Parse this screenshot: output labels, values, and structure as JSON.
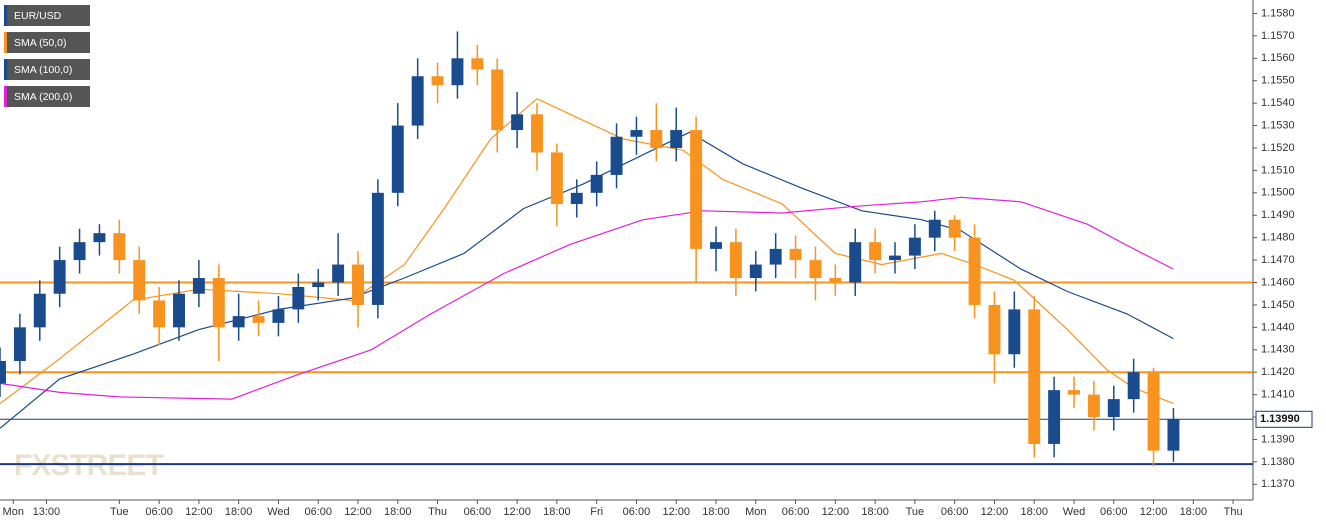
{
  "chart_data": {
    "type": "candlestick",
    "watermark": "FXSTREET",
    "candles": {
      "name": "EUR/USD",
      "color": "#1a4b8c",
      "up_color": "#1a4b8c",
      "down_color": "#f7931e",
      "x": [
        6,
        9,
        12,
        15,
        18,
        21,
        24,
        27,
        30,
        33,
        36,
        39,
        42,
        45,
        48,
        51,
        54,
        57,
        60,
        63,
        66,
        69,
        72,
        75,
        78,
        81,
        84,
        87,
        90,
        93,
        96,
        99,
        102,
        105,
        108,
        111,
        114,
        117,
        120,
        123,
        126,
        129,
        132,
        135,
        138,
        141,
        144,
        147,
        150,
        153,
        156,
        159,
        162,
        165,
        168,
        171,
        174,
        177,
        180,
        183
      ],
      "open": [
        1.1415,
        1.1425,
        1.144,
        1.1455,
        1.147,
        1.1478,
        1.1482,
        1.147,
        1.1452,
        1.144,
        1.1455,
        1.1462,
        1.144,
        1.1445,
        1.1442,
        1.1448,
        1.1458,
        1.146,
        1.1468,
        1.145,
        1.15,
        1.153,
        1.1552,
        1.1548,
        1.156,
        1.1555,
        1.1528,
        1.1535,
        1.1518,
        1.1495,
        1.15,
        1.1508,
        1.1525,
        1.1528,
        1.152,
        1.1528,
        1.1475,
        1.1478,
        1.1462,
        1.1468,
        1.1475,
        1.147,
        1.1462,
        1.146,
        1.1478,
        1.147,
        1.1472,
        1.148,
        1.1488,
        1.148,
        1.145,
        1.1428,
        1.1448,
        1.1388,
        1.1412,
        1.141,
        1.14,
        1.1408,
        1.142,
        1.1385
      ],
      "high": [
        1.1431,
        1.1446,
        1.1461,
        1.1476,
        1.1484,
        1.1486,
        1.1488,
        1.1476,
        1.1458,
        1.1461,
        1.147,
        1.1468,
        1.1455,
        1.1452,
        1.1454,
        1.1464,
        1.1466,
        1.1482,
        1.1474,
        1.1506,
        1.154,
        1.156,
        1.1558,
        1.1572,
        1.1566,
        1.156,
        1.1545,
        1.154,
        1.1522,
        1.1506,
        1.1514,
        1.1531,
        1.1534,
        1.154,
        1.1538,
        1.1534,
        1.1485,
        1.1484,
        1.1474,
        1.1482,
        1.1481,
        1.1476,
        1.1468,
        1.1484,
        1.1484,
        1.1478,
        1.1486,
        1.1492,
        1.149,
        1.1486,
        1.1456,
        1.1456,
        1.1454,
        1.1418,
        1.1418,
        1.1416,
        1.1414,
        1.1426,
        1.1422,
        1.1404
      ],
      "low": [
        1.1409,
        1.1419,
        1.1434,
        1.1449,
        1.1464,
        1.1472,
        1.1464,
        1.1446,
        1.1432,
        1.1434,
        1.1449,
        1.1425,
        1.1434,
        1.1436,
        1.1436,
        1.1442,
        1.1452,
        1.1454,
        1.144,
        1.1444,
        1.1494,
        1.1524,
        1.154,
        1.1542,
        1.1548,
        1.1518,
        1.152,
        1.151,
        1.1485,
        1.1489,
        1.1494,
        1.1502,
        1.1517,
        1.1514,
        1.1514,
        1.146,
        1.1465,
        1.1454,
        1.1456,
        1.1462,
        1.1462,
        1.1452,
        1.1454,
        1.1454,
        1.1464,
        1.1464,
        1.1466,
        1.1474,
        1.1474,
        1.1444,
        1.1415,
        1.1422,
        1.1382,
        1.1382,
        1.1404,
        1.1394,
        1.1394,
        1.1402,
        1.1378,
        1.138
      ],
      "close": [
        1.1425,
        1.144,
        1.1455,
        1.147,
        1.1478,
        1.1482,
        1.147,
        1.1452,
        1.144,
        1.1455,
        1.1462,
        1.144,
        1.1445,
        1.1442,
        1.1448,
        1.1458,
        1.146,
        1.1468,
        1.145,
        1.15,
        1.153,
        1.1552,
        1.1548,
        1.156,
        1.1555,
        1.1528,
        1.1535,
        1.1518,
        1.1495,
        1.15,
        1.1508,
        1.1525,
        1.1528,
        1.152,
        1.1528,
        1.1475,
        1.1478,
        1.1462,
        1.1468,
        1.1475,
        1.147,
        1.1462,
        1.146,
        1.1478,
        1.147,
        1.1472,
        1.148,
        1.1488,
        1.148,
        1.145,
        1.1428,
        1.1448,
        1.1388,
        1.1412,
        1.141,
        1.14,
        1.1408,
        1.142,
        1.1385,
        1.1399
      ]
    },
    "series": [
      {
        "name": "SMA (50,0)",
        "color": "#f7931e",
        "x": [
          6,
          15,
          26,
          36,
          48,
          59,
          67,
          73,
          80,
          87,
          92,
          100,
          109,
          115,
          124,
          132,
          139,
          148,
          153,
          159,
          167,
          173,
          177,
          183
        ],
        "values": [
          1.1406,
          1.1426,
          1.1452,
          1.1457,
          1.1455,
          1.1452,
          1.1468,
          1.1493,
          1.1524,
          1.1542,
          1.1535,
          1.1524,
          1.1519,
          1.1506,
          1.1495,
          1.1473,
          1.1468,
          1.1473,
          1.1468,
          1.1461,
          1.1439,
          1.1421,
          1.1413,
          1.1406
        ]
      },
      {
        "name": "SMA (100,0)",
        "color": "#1a4b8c",
        "x": [
          6,
          15,
          26,
          36,
          48,
          59,
          67,
          76,
          85,
          94,
          103,
          110,
          118,
          127,
          136,
          145,
          151,
          160,
          167,
          176,
          183
        ],
        "values": [
          1.1395,
          1.1417,
          1.1428,
          1.1439,
          1.1448,
          1.1453,
          1.1462,
          1.1473,
          1.1493,
          1.1504,
          1.1517,
          1.1527,
          1.1513,
          1.1502,
          1.1492,
          1.1488,
          1.1483,
          1.1466,
          1.1456,
          1.1446,
          1.1435
        ]
      },
      {
        "name": "SMA (200,0)",
        "color": "#e020d8",
        "x": [
          6,
          15,
          24,
          41,
          51,
          62,
          71,
          82,
          92,
          103,
          112,
          124,
          135,
          145,
          151,
          160,
          170,
          177,
          183
        ],
        "values": [
          1.1415,
          1.1411,
          1.1409,
          1.1408,
          1.1419,
          1.143,
          1.1446,
          1.1464,
          1.1477,
          1.1488,
          1.1492,
          1.1491,
          1.1494,
          1.1496,
          1.1498,
          1.1496,
          1.1486,
          1.1475,
          1.1466
        ]
      }
    ],
    "hlines": [
      {
        "value": 1.146,
        "color": "#f7931e"
      },
      {
        "value": 1.142,
        "color": "#f7931e"
      },
      {
        "value": 1.1379,
        "color": "#1a3a78"
      }
    ],
    "last_price": {
      "value": 1.1399,
      "label": "1.13990",
      "color": "#1a3a78"
    },
    "ylim": [
      1.1363,
      1.1586
    ],
    "yticks": [
      {
        "value": 1.137,
        "label": "1.1370"
      },
      {
        "value": 1.138,
        "label": "1.1380"
      },
      {
        "value": 1.139,
        "label": "1.1390"
      },
      {
        "value": 1.14,
        "label": "1.1400"
      },
      {
        "value": 1.141,
        "label": "1.1410"
      },
      {
        "value": 1.142,
        "label": "1.1420"
      },
      {
        "value": 1.143,
        "label": "1.1430"
      },
      {
        "value": 1.144,
        "label": "1.1440"
      },
      {
        "value": 1.145,
        "label": "1.1450"
      },
      {
        "value": 1.146,
        "label": "1.1460"
      },
      {
        "value": 1.147,
        "label": "1.1470"
      },
      {
        "value": 1.148,
        "label": "1.1480"
      },
      {
        "value": 1.149,
        "label": "1.1490"
      },
      {
        "value": 1.15,
        "label": "1.1500"
      },
      {
        "value": 1.151,
        "label": "1.1510"
      },
      {
        "value": 1.152,
        "label": "1.1520"
      },
      {
        "value": 1.153,
        "label": "1.1530"
      },
      {
        "value": 1.154,
        "label": "1.1540"
      },
      {
        "value": 1.155,
        "label": "1.1550"
      },
      {
        "value": 1.156,
        "label": "1.1560"
      },
      {
        "value": 1.157,
        "label": "1.1570"
      },
      {
        "value": 1.158,
        "label": "1.1580"
      }
    ],
    "xlim": [
      6,
      195
    ],
    "xticks": [
      {
        "value": 8,
        "label": "Mon"
      },
      {
        "value": 13,
        "label": "13:00"
      },
      {
        "value": 24,
        "label": "Tue"
      },
      {
        "value": 30,
        "label": "06:00"
      },
      {
        "value": 36,
        "label": "12:00"
      },
      {
        "value": 42,
        "label": "18:00"
      },
      {
        "value": 48,
        "label": "Wed"
      },
      {
        "value": 54,
        "label": "06:00"
      },
      {
        "value": 60,
        "label": "12:00"
      },
      {
        "value": 66,
        "label": "18:00"
      },
      {
        "value": 72,
        "label": "Thu"
      },
      {
        "value": 78,
        "label": "06:00"
      },
      {
        "value": 84,
        "label": "12:00"
      },
      {
        "value": 90,
        "label": "18:00"
      },
      {
        "value": 96,
        "label": "Fri"
      },
      {
        "value": 102,
        "label": "06:00"
      },
      {
        "value": 108,
        "label": "12:00"
      },
      {
        "value": 114,
        "label": "18:00"
      },
      {
        "value": 120,
        "label": "Mon"
      },
      {
        "value": 126,
        "label": "06:00"
      },
      {
        "value": 132,
        "label": "12:00"
      },
      {
        "value": 138,
        "label": "18:00"
      },
      {
        "value": 144,
        "label": "Tue"
      },
      {
        "value": 150,
        "label": "06:00"
      },
      {
        "value": 156,
        "label": "12:00"
      },
      {
        "value": 162,
        "label": "18:00"
      },
      {
        "value": 168,
        "label": "Wed"
      },
      {
        "value": 174,
        "label": "06:00"
      },
      {
        "value": 180,
        "label": "12:00"
      },
      {
        "value": 186,
        "label": "18:00"
      },
      {
        "value": 192,
        "label": "Thu"
      }
    ]
  }
}
